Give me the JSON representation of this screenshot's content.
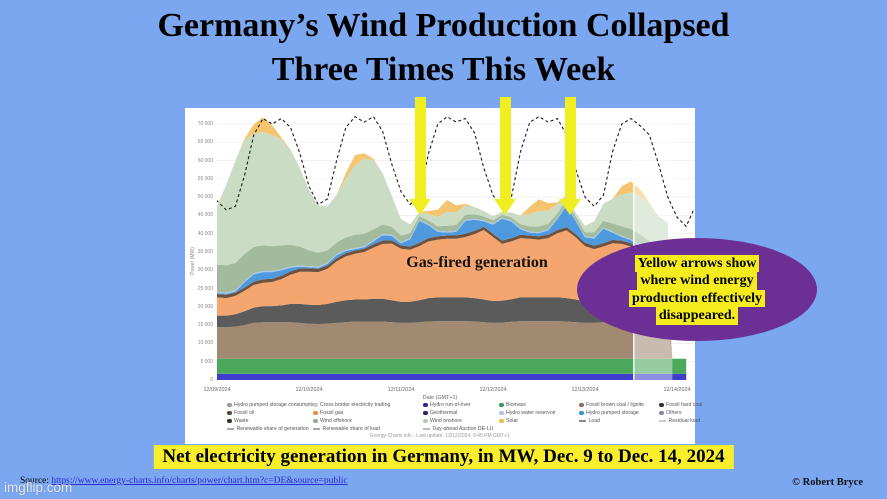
{
  "page": {
    "bg_color": "#7ba6f0"
  },
  "title": {
    "line1": "Germany’s Wind Production Collapsed",
    "line2": "Three Times This Week"
  },
  "annotations": {
    "gas_label": "Gas-fired generation",
    "ellipse_lines": [
      "Yellow arrows show",
      "where wind energy",
      "production effectively",
      "disappeared."
    ],
    "ellipse_color": "#6b2f96",
    "highlight_color": "#f5ec1e",
    "arrow_color": "#f0ee20",
    "arrow_x_centers": [
      420,
      505,
      570
    ]
  },
  "banner": {
    "text": "Net electricity generation in Germany, in MW, Dec. 9 to Dec. 14, 2024",
    "bg": "#f8ee2c"
  },
  "footer": {
    "source_label": "Source:",
    "source_url": "https://www.energy-charts.info/charts/power/chart.htm?c=DE&source=public",
    "credit": "© Robert Bryce",
    "watermark": "imgflip.com"
  },
  "chart_data": {
    "type": "area",
    "stacked": true,
    "ylabel": "Power (MW)",
    "xlabel": "Date (GMT+1)",
    "caption": "Energy-Charts.info - Last update: 13/12/2024, 9:45 PM GMT+1",
    "ylim": [
      0,
      73000
    ],
    "ytick_step": 5000,
    "ytick_labels": [
      "0",
      "5 000",
      "10 000",
      "15 000",
      "20 000",
      "25 000",
      "30 000",
      "35 000",
      "40 000",
      "45 000",
      "50 000",
      "55 000",
      "60 000",
      "65 000",
      "70 000"
    ],
    "x_ticks": [
      {
        "day": 0,
        "label": "12/09/2024"
      },
      {
        "day": 1,
        "label": "12/10/2024"
      },
      {
        "day": 2,
        "label": "12/11/2024"
      },
      {
        "day": 3,
        "label": "12/12/2024"
      },
      {
        "day": 4,
        "label": "12/13/2024"
      },
      {
        "day": 5,
        "label": "12/14/2024"
      }
    ],
    "forecast_start_day": 4.53,
    "t": [
      -0.2,
      -0.1,
      0,
      0.1,
      0.2,
      0.3,
      0.4,
      0.5,
      0.6,
      0.7,
      0.8,
      0.9,
      1.0,
      1.1,
      1.2,
      1.3,
      1.4,
      1.5,
      1.6,
      1.7,
      1.8,
      1.9,
      2.0,
      2.1,
      2.2,
      2.3,
      2.4,
      2.5,
      2.6,
      2.7,
      2.8,
      2.9,
      3.0,
      3.1,
      3.2,
      3.3,
      3.4,
      3.5,
      3.6,
      3.7,
      3.8,
      3.9,
      4.0,
      4.1,
      4.2,
      4.3,
      4.4,
      4.5,
      4.6,
      4.7,
      4.8,
      4.9,
      4.95,
      5.1
    ],
    "series": [
      {
        "id": "hydro-run-of-river",
        "name": "Hydro run-of-river",
        "color": "#3e3ecb",
        "values": [
          1700,
          1700,
          1700,
          1700,
          1700,
          1700,
          1700,
          1700,
          1700,
          1700,
          1700,
          1700,
          1700,
          1700,
          1700,
          1700,
          1700,
          1700,
          1700,
          1700,
          1700,
          1700,
          1700,
          1700,
          1700,
          1700,
          1700,
          1700,
          1700,
          1700,
          1700,
          1700,
          1700,
          1700,
          1700,
          1700,
          1700,
          1700,
          1700,
          1700,
          1700,
          1700,
          1700,
          1700,
          1700,
          1700,
          1700,
          1700,
          1700,
          1700,
          1700,
          1700,
          1700,
          1700
        ]
      },
      {
        "id": "biomass",
        "name": "Biomass",
        "color": "#4aa85a",
        "values": [
          4100,
          4100,
          4100,
          4100,
          4100,
          4100,
          4100,
          4100,
          4100,
          4100,
          4100,
          4100,
          4100,
          4100,
          4100,
          4100,
          4100,
          4100,
          4100,
          4100,
          4100,
          4100,
          4100,
          4100,
          4100,
          4100,
          4100,
          4100,
          4100,
          4100,
          4100,
          4100,
          4100,
          4100,
          4100,
          4100,
          4100,
          4100,
          4100,
          4100,
          4100,
          4100,
          4100,
          4100,
          4100,
          4100,
          4100,
          4100,
          4100,
          4100,
          4100,
          4100,
          4100,
          4100
        ]
      },
      {
        "id": "fossil-brown-coal",
        "name": "Fossil brown coal / lignite",
        "color": "#a28a72",
        "values": [
          8600,
          8600,
          8600,
          8600,
          8800,
          9200,
          9800,
          10000,
          10000,
          10000,
          10000,
          9800,
          9600,
          9500,
          9600,
          9800,
          10000,
          10200,
          10200,
          10200,
          10200,
          10000,
          9800,
          9800,
          10000,
          10200,
          10300,
          10300,
          10300,
          10300,
          10200,
          10000,
          9800,
          9900,
          10100,
          10300,
          10300,
          10300,
          10300,
          10300,
          10200,
          10000,
          9800,
          9800,
          10000,
          10200,
          10200,
          10200,
          10000,
          9800,
          9600,
          9500,
          0,
          0
        ]
      },
      {
        "id": "fossil-hard-coal",
        "name": "Fossil hard coal",
        "color": "#5b5b5b",
        "values": [
          3200,
          3200,
          3200,
          3200,
          3400,
          3800,
          4200,
          4400,
          4400,
          4600,
          5000,
          5200,
          5200,
          5200,
          5400,
          5800,
          6000,
          6000,
          6000,
          6200,
          6200,
          6000,
          5800,
          5800,
          6000,
          6400,
          6500,
          6500,
          6500,
          6500,
          6400,
          6200,
          6000,
          6000,
          6200,
          6500,
          6500,
          6500,
          6500,
          6500,
          6400,
          6200,
          6000,
          6000,
          6200,
          6400,
          6400,
          6300,
          6200,
          6000,
          5400,
          5000,
          0,
          0
        ]
      },
      {
        "id": "fossil-gas",
        "name": "Fossil gas",
        "color": "#f4a66e",
        "values": [
          5500,
          5200,
          5000,
          4800,
          5000,
          5600,
          6200,
          6400,
          6600,
          7200,
          8000,
          8800,
          9000,
          9000,
          9600,
          11000,
          12000,
          12500,
          13000,
          14000,
          15000,
          15500,
          14500,
          14200,
          14800,
          15500,
          15800,
          16000,
          16000,
          16500,
          17500,
          19000,
          17500,
          15500,
          15800,
          16200,
          16000,
          15800,
          16200,
          17500,
          18500,
          17000,
          15000,
          14200,
          14500,
          15000,
          14800,
          14200,
          13000,
          11500,
          10000,
          9000,
          0,
          0
        ]
      },
      {
        "id": "fossil-oil-waste",
        "name": "Fossil oil / Waste",
        "color": "#6e5240",
        "values": [
          900,
          900,
          900,
          900,
          900,
          900,
          900,
          900,
          900,
          900,
          900,
          900,
          900,
          900,
          900,
          900,
          900,
          900,
          900,
          900,
          900,
          900,
          900,
          900,
          900,
          900,
          900,
          900,
          900,
          900,
          900,
          900,
          900,
          900,
          900,
          900,
          900,
          900,
          900,
          900,
          900,
          900,
          900,
          900,
          900,
          900,
          900,
          900,
          900,
          900,
          900,
          900,
          0,
          0
        ]
      },
      {
        "id": "hydro-pumped-storage",
        "name": "Hydro pumped storage",
        "color": "#4f9ade",
        "values": [
          300,
          300,
          300,
          300,
          300,
          1500,
          2000,
          2000,
          1800,
          1500,
          1000,
          500,
          300,
          300,
          500,
          800,
          600,
          400,
          400,
          800,
          1500,
          1200,
          600,
          2000,
          6000,
          3500,
          1200,
          800,
          1000,
          3500,
          3000,
          1500,
          2500,
          6000,
          4500,
          1500,
          800,
          800,
          1200,
          3000,
          6000,
          3500,
          1500,
          2000,
          4000,
          2000,
          1000,
          800,
          600,
          500,
          400,
          400,
          0,
          0
        ]
      },
      {
        "id": "hydro-water-reservoir",
        "name": "Hydro water reservoir",
        "color": "#abc8ee",
        "values": [
          300,
          300,
          300,
          300,
          300,
          300,
          300,
          300,
          300,
          300,
          300,
          300,
          300,
          300,
          300,
          300,
          300,
          300,
          300,
          300,
          300,
          300,
          300,
          300,
          300,
          300,
          300,
          300,
          300,
          300,
          300,
          300,
          300,
          300,
          300,
          300,
          300,
          300,
          300,
          300,
          300,
          300,
          300,
          300,
          300,
          300,
          300,
          300,
          300,
          300,
          300,
          300,
          0,
          0
        ]
      },
      {
        "id": "wind-offshore",
        "name": "Wind offshore",
        "color": "#a3bb9d",
        "values": [
          7000,
          7200,
          7400,
          7500,
          7500,
          7400,
          7200,
          7000,
          6800,
          6500,
          6000,
          5200,
          4400,
          3800,
          3400,
          3200,
          3400,
          3600,
          3400,
          3000,
          2600,
          2200,
          1800,
          1400,
          1000,
          1000,
          1200,
          1600,
          1600,
          1400,
          1200,
          1000,
          900,
          800,
          900,
          1100,
          1400,
          1600,
          1500,
          1300,
          1100,
          1000,
          1100,
          1400,
          1800,
          2200,
          2600,
          2800,
          3000,
          3200,
          3400,
          3600,
          0,
          0
        ]
      },
      {
        "id": "wind-onshore",
        "name": "Wind onshore",
        "color": "#cbdcc4",
        "values": [
          16000,
          16000,
          16000,
          22000,
          28000,
          31000,
          31000,
          31000,
          30500,
          29000,
          26000,
          21500,
          16500,
          13000,
          12000,
          13000,
          16000,
          19000,
          20500,
          19000,
          14000,
          8500,
          4500,
          2400,
          1200,
          1800,
          2600,
          3800,
          3400,
          2600,
          2000,
          1500,
          1100,
          800,
          1300,
          2400,
          3400,
          4200,
          3600,
          2600,
          1300,
          1000,
          1700,
          3000,
          4700,
          6800,
          8800,
          10000,
          10500,
          10000,
          9000,
          8500,
          0,
          0
        ]
      },
      {
        "id": "solar",
        "name": "Solar",
        "color": "#f5c46f",
        "values": [
          0,
          0,
          0,
          0,
          0,
          500,
          2500,
          4000,
          2500,
          500,
          0,
          0,
          0,
          0,
          0,
          0,
          1500,
          2800,
          1500,
          300,
          0,
          0,
          0,
          0,
          0,
          800,
          2000,
          3200,
          2000,
          400,
          0,
          0,
          0,
          0,
          0,
          0,
          2000,
          3200,
          2000,
          400,
          0,
          0,
          0,
          0,
          0,
          0,
          2200,
          3000,
          1800,
          300,
          0,
          0,
          0,
          0
        ]
      }
    ],
    "load": {
      "name": "Load",
      "color": "#1b1b1b",
      "style": "dashed",
      "t": [
        -0.2,
        -0.1,
        0,
        0.1,
        0.2,
        0.3,
        0.4,
        0.5,
        0.6,
        0.7,
        0.8,
        0.9,
        1.0,
        1.1,
        1.2,
        1.3,
        1.4,
        1.5,
        1.6,
        1.7,
        1.8,
        1.9,
        2.0,
        2.1,
        2.2,
        2.3,
        2.4,
        2.5,
        2.6,
        2.7,
        2.8,
        2.9,
        3.0,
        3.1,
        3.2,
        3.3,
        3.4,
        3.5,
        3.6,
        3.7,
        3.8,
        3.9,
        4.0,
        4.1,
        4.2,
        4.3,
        4.4,
        4.5,
        4.6,
        4.7,
        4.8,
        4.9,
        5.0,
        5.1,
        5.18
      ],
      "values": [
        57000,
        53000,
        49000,
        46500,
        47500,
        56000,
        67000,
        71500,
        70000,
        71500,
        69000,
        62000,
        53000,
        48000,
        49500,
        60000,
        69000,
        72000,
        70500,
        72000,
        68000,
        59000,
        51500,
        48000,
        50500,
        62000,
        70000,
        72000,
        70500,
        71500,
        67500,
        58000,
        50500,
        47500,
        50000,
        62500,
        70500,
        72000,
        70500,
        71500,
        67000,
        57500,
        50000,
        47500,
        50500,
        62500,
        70000,
        71500,
        69500,
        67000,
        59000,
        50000,
        44500,
        42000,
        46500
      ]
    },
    "legend_columns": [
      [
        {
          "label": "Hydro pumped storage consumption",
          "color": "#9a9a9a",
          "marker": "dot"
        },
        {
          "label": "Fossil oil",
          "color": "#5a4632",
          "marker": "dot"
        },
        {
          "label": "Waste",
          "color": "#3f3322",
          "marker": "dot"
        },
        {
          "label": "Renewable share of generation",
          "color": "#aaaaaa",
          "marker": "line"
        }
      ],
      [
        {
          "label": "Cross border electricity trading",
          "color": "#cccccc",
          "marker": "dot"
        },
        {
          "label": "Fossil gas",
          "color": "#ef8b3e",
          "marker": "dot"
        },
        {
          "label": "Wind offshore",
          "color": "#93ac8d",
          "marker": "dot"
        },
        {
          "label": "Renewable share of load",
          "color": "#aaaaaa",
          "marker": "line"
        }
      ],
      [
        {
          "label": "Hydro run-of-river",
          "color": "#2a2a9e",
          "marker": "dot"
        },
        {
          "label": "Geothermal",
          "color": "#1d2b66",
          "marker": "dot"
        },
        {
          "label": "Wind onshore",
          "color": "#b7cdb0",
          "marker": "dot"
        },
        {
          "label": "Day-ahead Auction DE-LU",
          "color": "#bbbbbb",
          "marker": "line"
        }
      ],
      [
        {
          "label": "Biomass",
          "color": "#2f9e4e",
          "marker": "dot"
        },
        {
          "label": "Hydro water reservoir",
          "color": "#a9c6e8",
          "marker": "dot"
        },
        {
          "label": "Solar",
          "color": "#e9c43c",
          "marker": "dot"
        }
      ],
      [
        {
          "label": "Fossil brown coal / lignite",
          "color": "#8a6d58",
          "marker": "dot"
        },
        {
          "label": "Hydro pumped storage",
          "color": "#2e9ad0",
          "marker": "dot"
        },
        {
          "label": "Load",
          "color": "#888888",
          "marker": "line"
        }
      ],
      [
        {
          "label": "Fossil hard coal",
          "color": "#333333",
          "marker": "dot"
        },
        {
          "label": "Others",
          "color": "#8d84a6",
          "marker": "dot"
        },
        {
          "label": "Residual load",
          "color": "#cccccc",
          "marker": "line"
        }
      ]
    ]
  }
}
